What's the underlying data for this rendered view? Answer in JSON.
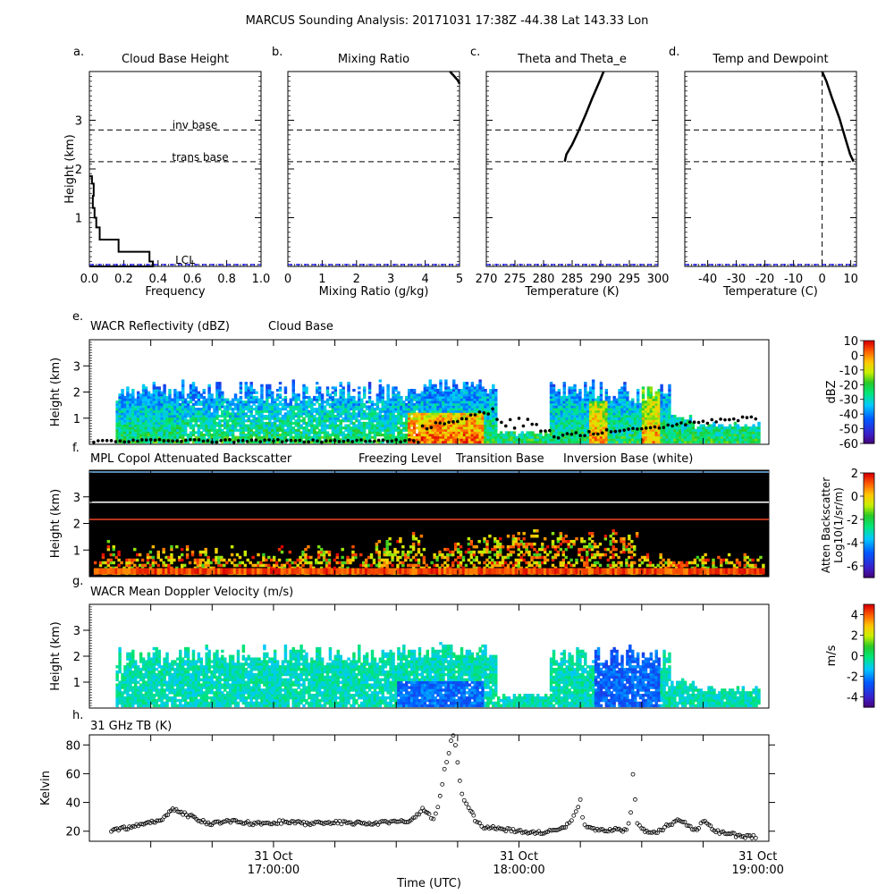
{
  "figure_title": "MARCUS Sounding Analysis: 20171031 17:38Z   -44.38 Lat  143.33 Lon",
  "colors": {
    "lcl": "#0000ff",
    "freezing_level": "#7ab8f0",
    "transition_base": "#ee4422",
    "inversion_base": "#ffffff",
    "mpl_background": "#000000"
  },
  "reference_lines": {
    "inv_base_label": "inv base",
    "inv_base_km": 2.8,
    "trans_base_label": "trans base",
    "trans_base_km": 2.15,
    "lcl_label": "LCL",
    "lcl_km": 0.0
  },
  "chart_data": [
    {
      "id": "a",
      "panel_letter": "a.",
      "type": "line",
      "title": "Cloud Base Height",
      "xlabel": "Frequency",
      "ylabel": "Height (km)",
      "xlim": [
        0,
        1.0
      ],
      "ylim": [
        0,
        4
      ],
      "xticks": [
        "0.0",
        "0.2",
        "0.4",
        "0.6",
        "0.8",
        "1.0"
      ],
      "xtick_values": [
        0,
        0.2,
        0.4,
        0.6,
        0.8,
        1.0
      ],
      "yticks": [
        "1",
        "2",
        "3"
      ],
      "ytick_values": [
        1,
        2,
        3
      ],
      "histogram": {
        "bin_edges_km": [
          0.0,
          0.1,
          0.3,
          0.55,
          0.8,
          1.0,
          1.2,
          1.45,
          1.7,
          1.85
        ],
        "frequency": [
          0.37,
          0.35,
          0.17,
          0.06,
          0.04,
          0.03,
          0.02,
          0.025,
          0.015
        ]
      }
    },
    {
      "id": "b",
      "panel_letter": "b.",
      "type": "line",
      "title": "Mixing Ratio",
      "xlabel": "Mixing Ratio (g/kg)",
      "xlim": [
        0,
        5
      ],
      "ylim": [
        0,
        4
      ],
      "xticks": [
        "0",
        "1",
        "2",
        "3",
        "4",
        "5"
      ],
      "xtick_values": [
        0,
        1,
        2,
        3,
        4,
        5
      ],
      "series": [
        {
          "x": [
            4.72,
            4.85,
            4.95,
            5.0
          ],
          "y": [
            4.0,
            3.9,
            3.82,
            3.75
          ]
        }
      ]
    },
    {
      "id": "c",
      "panel_letter": "c.",
      "type": "line",
      "title": "Theta and Theta_e",
      "xlabel": "Temperature (K)",
      "xlim": [
        270,
        300
      ],
      "ylim": [
        0,
        4
      ],
      "xticks": [
        "270",
        "275",
        "280",
        "285",
        "290",
        "295",
        "300"
      ],
      "xtick_values": [
        270,
        275,
        280,
        285,
        290,
        295,
        300
      ],
      "series": [
        {
          "x": [
            283.7,
            284.0,
            285.0,
            286.0,
            287.3,
            288.5,
            289.8,
            290.5
          ],
          "y": [
            2.15,
            2.3,
            2.5,
            2.75,
            3.1,
            3.45,
            3.8,
            4.0
          ]
        }
      ]
    },
    {
      "id": "d",
      "panel_letter": "d.",
      "type": "line",
      "title": "Temp and Dewpoint",
      "xlabel": "Temperature (C)",
      "xlim": [
        -48,
        12
      ],
      "ylim": [
        0,
        4
      ],
      "xticks": [
        "-40",
        "-30",
        "-20",
        "-10",
        "0",
        "10"
      ],
      "xtick_values": [
        -40,
        -30,
        -20,
        -10,
        0,
        10
      ],
      "zero_line_x": 0,
      "series": [
        {
          "x": [
            11.0,
            9.8,
            8.0,
            6.0,
            3.5,
            1.5,
            0.0
          ],
          "y": [
            2.15,
            2.3,
            2.65,
            3.05,
            3.45,
            3.8,
            4.0
          ]
        }
      ]
    },
    {
      "id": "e",
      "panel_letter": "e.",
      "type": "heatmap",
      "title": "WACR Reflectivity (dBZ)",
      "title2": "Cloud Base",
      "ylabel": "Height (km)",
      "ylim": [
        0,
        4
      ],
      "yticks": [
        "1",
        "2",
        "3"
      ],
      "ytick_values": [
        1,
        2,
        3
      ],
      "colorbar": {
        "label": "dBZ",
        "ticks": [
          "10",
          "0",
          "-10",
          "-20",
          "-30",
          "-40",
          "-50",
          "-60"
        ],
        "tick_values": [
          10,
          0,
          -10,
          -20,
          -30,
          -40,
          -50,
          -60
        ],
        "range": [
          -60,
          10
        ]
      }
    },
    {
      "id": "f",
      "panel_letter": "f.",
      "type": "heatmap",
      "title": "MPL Copol Attenuated Backscatter",
      "legend_items": [
        "Freezing Level",
        "Transition Base",
        "Inversion Base (white)"
      ],
      "ylabel": "Height (km)",
      "ylim": [
        0,
        4
      ],
      "yticks": [
        "1",
        "2",
        "3"
      ],
      "ytick_values": [
        1,
        2,
        3
      ],
      "colorbar": {
        "label": "Atten Backscatter",
        "label2": "Log10(1/sr/m)",
        "ticks": [
          "2",
          "0",
          "-2",
          "-4",
          "-6"
        ],
        "tick_values": [
          2,
          0,
          -2,
          -4,
          -6
        ],
        "range": [
          -7,
          2
        ]
      }
    },
    {
      "id": "g",
      "panel_letter": "g.",
      "type": "heatmap",
      "title": "WACR Mean Doppler Velocity (m/s)",
      "ylabel": "Height (km)",
      "ylim": [
        0,
        4
      ],
      "yticks": [
        "1",
        "2",
        "3"
      ],
      "ytick_values": [
        1,
        2,
        3
      ],
      "colorbar": {
        "label": "m/s",
        "ticks": [
          "4",
          "2",
          "0",
          "-2",
          "-4"
        ],
        "tick_values": [
          4,
          2,
          0,
          -2,
          -4
        ],
        "range": [
          -5,
          5
        ]
      }
    },
    {
      "id": "h",
      "panel_letter": "h.",
      "type": "scatter",
      "title": "31 GHz TB (K)",
      "ylabel": "Kelvin",
      "xlabel": "Time (UTC)",
      "ylim": [
        13,
        87
      ],
      "yticks": [
        "20",
        "40",
        "60",
        "80"
      ],
      "ytick_values": [
        20,
        40,
        60,
        80
      ],
      "time_ticks": [
        [
          "31 Oct",
          "17:00:00"
        ],
        [
          "31 Oct",
          "18:00:00"
        ],
        [
          "31 Oct",
          "19:00:00"
        ]
      ],
      "x_hours": [
        16.1,
        16.24,
        16.3,
        16.35,
        16.38,
        16.45,
        16.55,
        16.62,
        16.7,
        16.8,
        16.9,
        17.0,
        17.1,
        17.2,
        17.3,
        17.4,
        17.47,
        17.52,
        17.55,
        17.57,
        17.59,
        17.6,
        17.61,
        17.62,
        17.63,
        17.64,
        17.65,
        17.66,
        17.67,
        17.68,
        17.69,
        17.7,
        17.72,
        17.74,
        17.76,
        17.78,
        17.8,
        17.85,
        17.9,
        17.95,
        18.0,
        18.05,
        18.1,
        18.15,
        18.18,
        18.2,
        18.22,
        18.24,
        18.25,
        18.26,
        18.27,
        18.3,
        18.35,
        18.4,
        18.45,
        18.47,
        18.48,
        18.5,
        18.52,
        18.55,
        18.6,
        18.65,
        18.7,
        18.75,
        18.78,
        18.8,
        18.85,
        18.9,
        18.95,
        19.0,
        19.03,
        19.05
      ],
      "values_k": [
        21,
        24,
        27,
        30,
        35,
        31,
        25,
        27,
        26,
        25,
        27,
        25,
        26,
        26,
        25,
        27,
        27,
        35,
        32,
        28,
        38,
        45,
        52,
        62,
        68,
        75,
        82,
        86,
        80,
        68,
        55,
        45,
        38,
        34,
        28,
        25,
        23,
        22,
        21,
        20,
        19,
        19,
        20,
        22,
        24,
        27,
        34,
        42,
        29,
        25,
        22,
        21,
        20,
        21,
        20,
        33,
        60,
        25,
        21,
        19,
        20,
        25,
        28,
        22,
        21,
        28,
        20,
        19,
        17,
        16,
        16,
        15
      ]
    }
  ]
}
